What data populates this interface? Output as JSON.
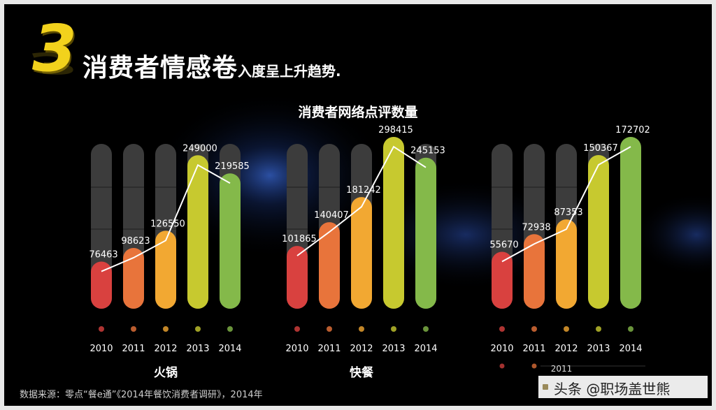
{
  "page": {
    "number": "3",
    "headline_main": "消费者情感卷",
    "headline_sub": "入度呈上升趋势.",
    "chart_title": "消费者网络点评数量",
    "source_note": "数据来源：零点“餐e通”《2014年餐饮消费者调研》，2014年",
    "watermark": "头条 @职场盖世熊"
  },
  "colors": {
    "background": "#000000",
    "track": "#3c3c3c",
    "title_yellow": "#f2d21c",
    "line": "#ffffff",
    "bars": [
      "#d9413f",
      "#e8743b",
      "#f2a832",
      "#c7c92f",
      "#84b94a"
    ]
  },
  "chart_data": [
    {
      "type": "bar",
      "title": "",
      "category_label": "火锅",
      "categories": [
        "2010",
        "2011",
        "2012",
        "2013",
        "2014"
      ],
      "values": [
        76463,
        98623,
        126550,
        249000,
        219585
      ],
      "value_labels": [
        "76463",
        "98623",
        "126550",
        "249000",
        "219585"
      ],
      "line_overlay": true,
      "ylim": [
        0,
        340000
      ]
    },
    {
      "type": "bar",
      "title": "",
      "category_label": "快餐",
      "categories": [
        "2010",
        "2011",
        "2012",
        "2013",
        "2014"
      ],
      "values": [
        101865,
        140407,
        181242,
        298415,
        245153
      ],
      "value_labels": [
        "101865",
        "140407",
        "181242",
        "298415",
        "245153"
      ],
      "line_overlay": true,
      "ylim": [
        0,
        340000
      ]
    },
    {
      "type": "bar",
      "title": "",
      "category_label": "",
      "categories": [
        "2010",
        "2011",
        "2012",
        "2013",
        "2014"
      ],
      "values": [
        55670,
        72938,
        87353,
        150367,
        172702
      ],
      "value_labels": [
        "55670",
        "72938",
        "87353",
        "150367",
        "172702"
      ],
      "line_overlay": true,
      "ylim": [
        0,
        205000
      ],
      "extra_axis_label": "2011"
    }
  ]
}
